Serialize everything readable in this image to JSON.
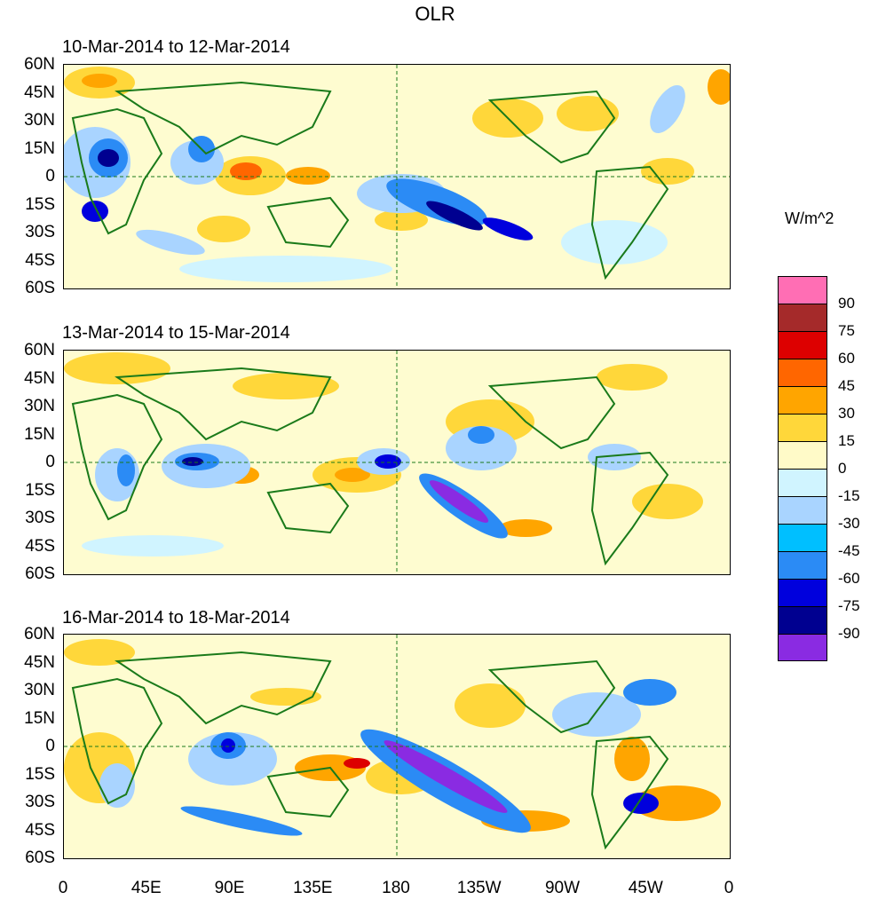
{
  "title": "OLR",
  "panels": [
    {
      "label": "10-Mar-2014 to 12-Mar-2014"
    },
    {
      "label": "13-Mar-2014 to 15-Mar-2014"
    },
    {
      "label": "16-Mar-2014 to 18-Mar-2014"
    }
  ],
  "lat_labels": [
    "60N",
    "45N",
    "30N",
    "15N",
    "0",
    "15S",
    "30S",
    "45S",
    "60S"
  ],
  "lon_labels": [
    "0",
    "45E",
    "90E",
    "135E",
    "180",
    "135W",
    "90W",
    "45W",
    "0"
  ],
  "units": "W/m^2",
  "colorbar": {
    "colors": [
      "#ff6eb4",
      "#a52a2a",
      "#dd0000",
      "#ff6600",
      "#ffa500",
      "#ffd73a",
      "#fffac8",
      "#d0f4ff",
      "#a9d4ff",
      "#00bfff",
      "#2b8bf5",
      "#0000dd",
      "#000090",
      "#8a2be2"
    ],
    "labels": [
      "90",
      "75",
      "60",
      "45",
      "30",
      "15",
      "0",
      "-15",
      "-30",
      "-45",
      "-60",
      "-75",
      "-90"
    ]
  },
  "palette": {
    "background": "#fefcd0",
    "land_outline": "#1a7a1a",
    "grid": "#1a7a1a"
  }
}
